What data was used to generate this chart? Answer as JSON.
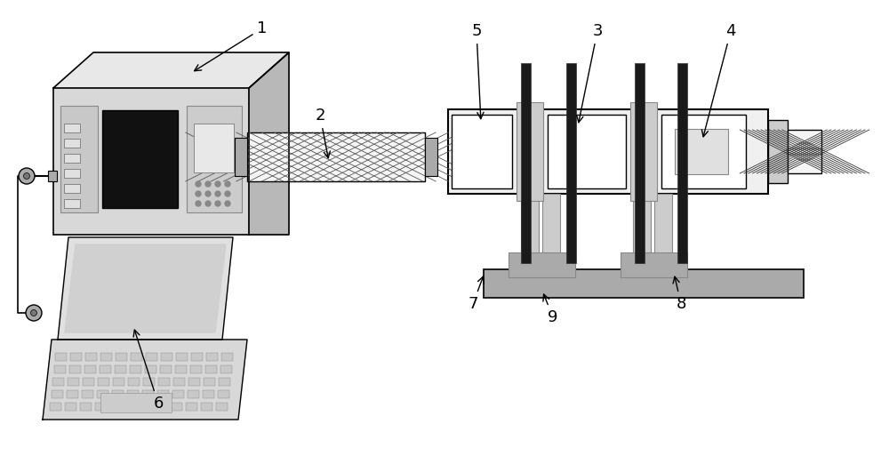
{
  "bg_color": "#ffffff",
  "gray_light": "#cccccc",
  "gray_mid": "#aaaaaa",
  "gray_dark": "#888888",
  "gray_fill": "#bbbbbb",
  "black": "#000000",
  "white": "#ffffff",
  "dark_gray": "#444444",
  "label_fontsize": 13
}
